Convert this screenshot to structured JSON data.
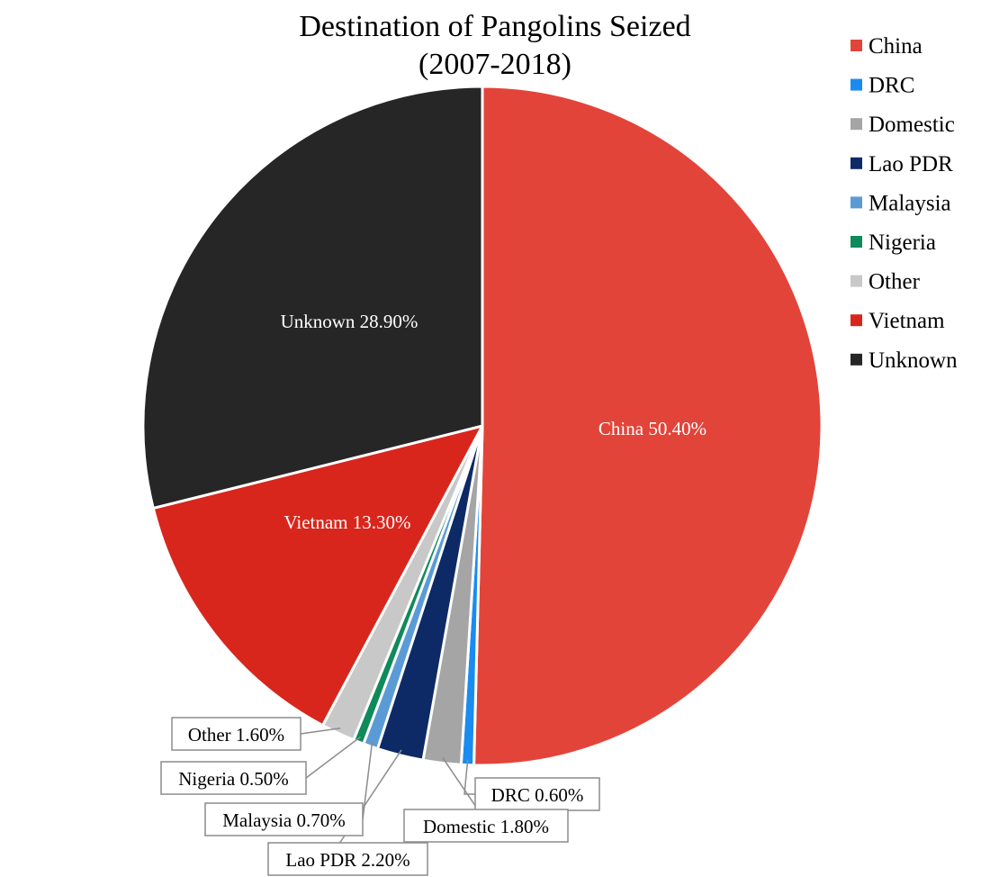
{
  "chart_data": {
    "type": "pie",
    "title": "Destination of Pangolins Seized",
    "subtitle": "(2007-2018)",
    "legend_position": "top-right",
    "start": "12 o'clock, clockwise",
    "slices": [
      {
        "name": "China",
        "value": 50.4,
        "label": "China 50.40%",
        "color": "#e3443a"
      },
      {
        "name": "DRC",
        "value": 0.6,
        "label": "DRC 0.60%",
        "color": "#1a8cf0"
      },
      {
        "name": "Domestic",
        "value": 1.8,
        "label": "Domestic 1.80%",
        "color": "#a5a5a5"
      },
      {
        "name": "Lao PDR",
        "value": 2.2,
        "label": "Lao PDR 2.20%",
        "color": "#0d2a66"
      },
      {
        "name": "Malaysia",
        "value": 0.7,
        "label": "Malaysia 0.70%",
        "color": "#5b9bd5"
      },
      {
        "name": "Nigeria",
        "value": 0.5,
        "label": "Nigeria 0.50%",
        "color": "#0f8a5a"
      },
      {
        "name": "Other",
        "value": 1.6,
        "label": "Other 1.60%",
        "color": "#c8c8c8"
      },
      {
        "name": "Vietnam",
        "value": 13.3,
        "label": "Vietnam 13.30%",
        "color": "#d9261c"
      },
      {
        "name": "Unknown",
        "value": 28.9,
        "label": "Unknown 28.90%",
        "color": "#262626"
      }
    ]
  }
}
